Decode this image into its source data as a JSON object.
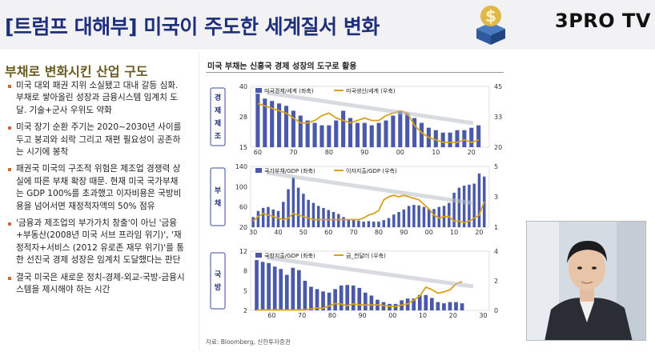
{
  "header": {
    "title": "[트럼프 대해부] 미국이 주도한 세계질서 변화",
    "brand": "3PRO TV",
    "logo_icon": "dollar-cube-logo"
  },
  "left": {
    "section_title": "부채로 변화시킨 산업 구도",
    "bullets": [
      "미국 대외 패권 지위 소실됐고 대내 갈등 심화. 부채로 쌓아올린 성장과 금융시스템 임계치 도달. 기술+군사 우위도 약화",
      "미국 장기 순환 주기는 2020~2030년 사이를 두고 붕괴와 쇠락 그리고 재편 필요성이 공존하는 시기에 봉착",
      "패권국 미국의 구조적 위험은 제조업 경쟁력 상실에 따른 부채 확장 때문. 현재 미국 국가부채는 GDP 100%를 초과했고 이자비용은 국방비용을 넘어서면 재정적자액의 50% 점유",
      "'금융과 제조업의 부가가치 창출'이 아닌 '금융+부동산(2008년 미국 서브 프라임 위기)', '재정적자+서비스 (2012 유로존 재무 위기)'를 통한 선진국 경제 성장은 임계치 도달했다는 판단",
      "결국 미국은 새로운 정치-경제-외교-국방-금융시스템을 제시해야 하는 시간"
    ]
  },
  "chart_panel": {
    "title": "미국 부채는 신흥국 경제 성장의 도구로 활용",
    "source": "자료: Bloomberg, 신한투자증권"
  },
  "colors": {
    "bar": "#4a5aa8",
    "line": "#d8a21a",
    "arrow": "#b9bec7",
    "header_title": "#1f2f7a",
    "section_title": "#6a5b20"
  },
  "chart_data": [
    {
      "type": "bar",
      "side_label": "경제 제조",
      "legend": [
        "미국경제/세계 (좌축)",
        "미국생산/세계 (우축)"
      ],
      "x_ticks": [
        "60",
        "70",
        "80",
        "90",
        "00",
        "10",
        "20"
      ],
      "left_ticks": [
        "40",
        "28",
        "15"
      ],
      "right_ticks": [
        "45",
        "33",
        "20"
      ],
      "ylim_left": [
        15,
        40
      ],
      "ylim_right": [
        20,
        45
      ],
      "x": [
        1960,
        1962,
        1964,
        1966,
        1968,
        1970,
        1972,
        1974,
        1976,
        1978,
        1980,
        1982,
        1984,
        1986,
        1988,
        1990,
        1992,
        1994,
        1996,
        1998,
        2000,
        2002,
        2004,
        2006,
        2008,
        2010,
        2012,
        2014,
        2016,
        2018,
        2020,
        2022
      ],
      "bar_values": [
        37,
        35,
        34,
        33,
        32,
        30,
        28,
        26,
        25,
        24,
        24,
        26,
        30,
        27,
        25,
        25,
        24,
        25,
        26,
        28,
        30,
        29,
        27,
        25,
        23,
        22,
        21,
        21,
        22,
        22,
        23,
        24
      ],
      "line_values": [
        38,
        37,
        36,
        35,
        34,
        32,
        30,
        30,
        31,
        33,
        34,
        32,
        31,
        30,
        31,
        32,
        31,
        31,
        33,
        34,
        35,
        34,
        29,
        26,
        24,
        23,
        22,
        22,
        22,
        23,
        22,
        23
      ]
    },
    {
      "type": "bar",
      "side_label": "부채",
      "legend": [
        "국가부채/GDP (좌축)",
        "이자지출/GDP (우측)"
      ],
      "x_ticks": [
        "30",
        "40",
        "50",
        "60",
        "70",
        "80",
        "90",
        "00",
        "10",
        "20"
      ],
      "left_ticks": [
        "140",
        "100",
        "60",
        "20"
      ],
      "right_ticks": [
        "5",
        "3",
        "1"
      ],
      "ylim_left": [
        20,
        140
      ],
      "ylim_right": [
        1,
        5
      ],
      "x": [
        1930,
        1932,
        1934,
        1936,
        1938,
        1940,
        1942,
        1944,
        1946,
        1948,
        1950,
        1952,
        1954,
        1956,
        1958,
        1960,
        1962,
        1964,
        1966,
        1968,
        1970,
        1972,
        1974,
        1976,
        1978,
        1980,
        1982,
        1984,
        1986,
        1988,
        1990,
        1992,
        1994,
        1996,
        1998,
        2000,
        2002,
        2004,
        2006,
        2008,
        2010,
        2012,
        2014,
        2016,
        2018,
        2020,
        2022
      ],
      "bar_values": [
        40,
        52,
        58,
        60,
        55,
        52,
        70,
        95,
        118,
        98,
        86,
        74,
        68,
        62,
        58,
        54,
        50,
        46,
        40,
        36,
        34,
        33,
        31,
        32,
        31,
        31,
        34,
        38,
        45,
        50,
        55,
        62,
        64,
        63,
        60,
        56,
        56,
        60,
        62,
        68,
        88,
        98,
        102,
        104,
        106,
        126,
        120
      ],
      "line_values": [
        1.4,
        1.7,
        1.9,
        1.8,
        1.7,
        1.6,
        1.5,
        1.6,
        1.9,
        1.8,
        1.7,
        1.6,
        1.5,
        1.5,
        1.5,
        1.5,
        1.5,
        1.5,
        1.5,
        1.5,
        1.5,
        1.5,
        1.6,
        1.8,
        1.9,
        2.1,
        2.8,
        3.0,
        3.1,
        3.0,
        3.1,
        3.0,
        2.9,
        2.8,
        2.5,
        2.2,
        1.8,
        1.6,
        1.7,
        1.7,
        1.4,
        1.4,
        1.3,
        1.4,
        1.6,
        1.8,
        2.7
      ]
    },
    {
      "type": "bar",
      "side_label": "국방",
      "legend": [
        "국방지출/GDP (좌축)",
        "금_천달러 (우축)"
      ],
      "x_ticks": [
        "60",
        "70",
        "80",
        "90",
        "00",
        "10",
        "20",
        "30"
      ],
      "left_ticks": [
        "12",
        "8",
        "5",
        "2"
      ],
      "right_ticks": [
        "4",
        "2",
        "0"
      ],
      "ylim_left": [
        2,
        12
      ],
      "ylim_right": [
        0,
        4
      ],
      "x": [
        1955,
        1957,
        1959,
        1961,
        1963,
        1965,
        1967,
        1969,
        1971,
        1973,
        1975,
        1977,
        1979,
        1981,
        1983,
        1985,
        1987,
        1989,
        1991,
        1993,
        1995,
        1997,
        1999,
        2001,
        2003,
        2005,
        2007,
        2009,
        2011,
        2013,
        2015,
        2017,
        2019,
        2021,
        2023
      ],
      "bar_values": [
        10.5,
        10.2,
        10,
        9.4,
        9,
        8,
        9.2,
        8.8,
        7,
        6,
        5.6,
        5.2,
        5,
        5.6,
        6.2,
        6.3,
        6.2,
        5.8,
        5,
        4.5,
        3.8,
        3.4,
        3.1,
        3.1,
        3.7,
        4,
        4,
        4.6,
        4.6,
        4.1,
        3.4,
        3.2,
        3.4,
        3.4,
        3.2
      ],
      "line_values": [
        0.03,
        0.03,
        0.03,
        0.03,
        0.03,
        0.03,
        0.03,
        0.04,
        0.04,
        0.1,
        0.16,
        0.15,
        0.3,
        0.46,
        0.42,
        0.32,
        0.44,
        0.38,
        0.36,
        0.36,
        0.38,
        0.33,
        0.28,
        0.27,
        0.36,
        0.44,
        0.7,
        0.97,
        1.57,
        1.41,
        1.16,
        1.26,
        1.39,
        1.8,
        1.94
      ]
    }
  ]
}
